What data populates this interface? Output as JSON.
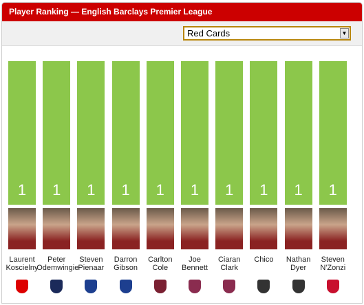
{
  "chart_data": {
    "type": "bar",
    "title": "Player Ranking — English Barclays Premier League",
    "dropdown": "Red Cards",
    "categories": [
      "Laurent Koscielny",
      "Peter Odemwingie",
      "Steven Pienaar",
      "Darron Gibson",
      "Carlton Cole",
      "Joe Bennett",
      "Ciaran Clark",
      "Chico",
      "Nathan Dyer",
      "Steven N'Zonzi"
    ],
    "values": [
      1,
      1,
      1,
      1,
      1,
      1,
      1,
      1,
      1,
      1
    ],
    "color": "#8cc74b"
  }
}
